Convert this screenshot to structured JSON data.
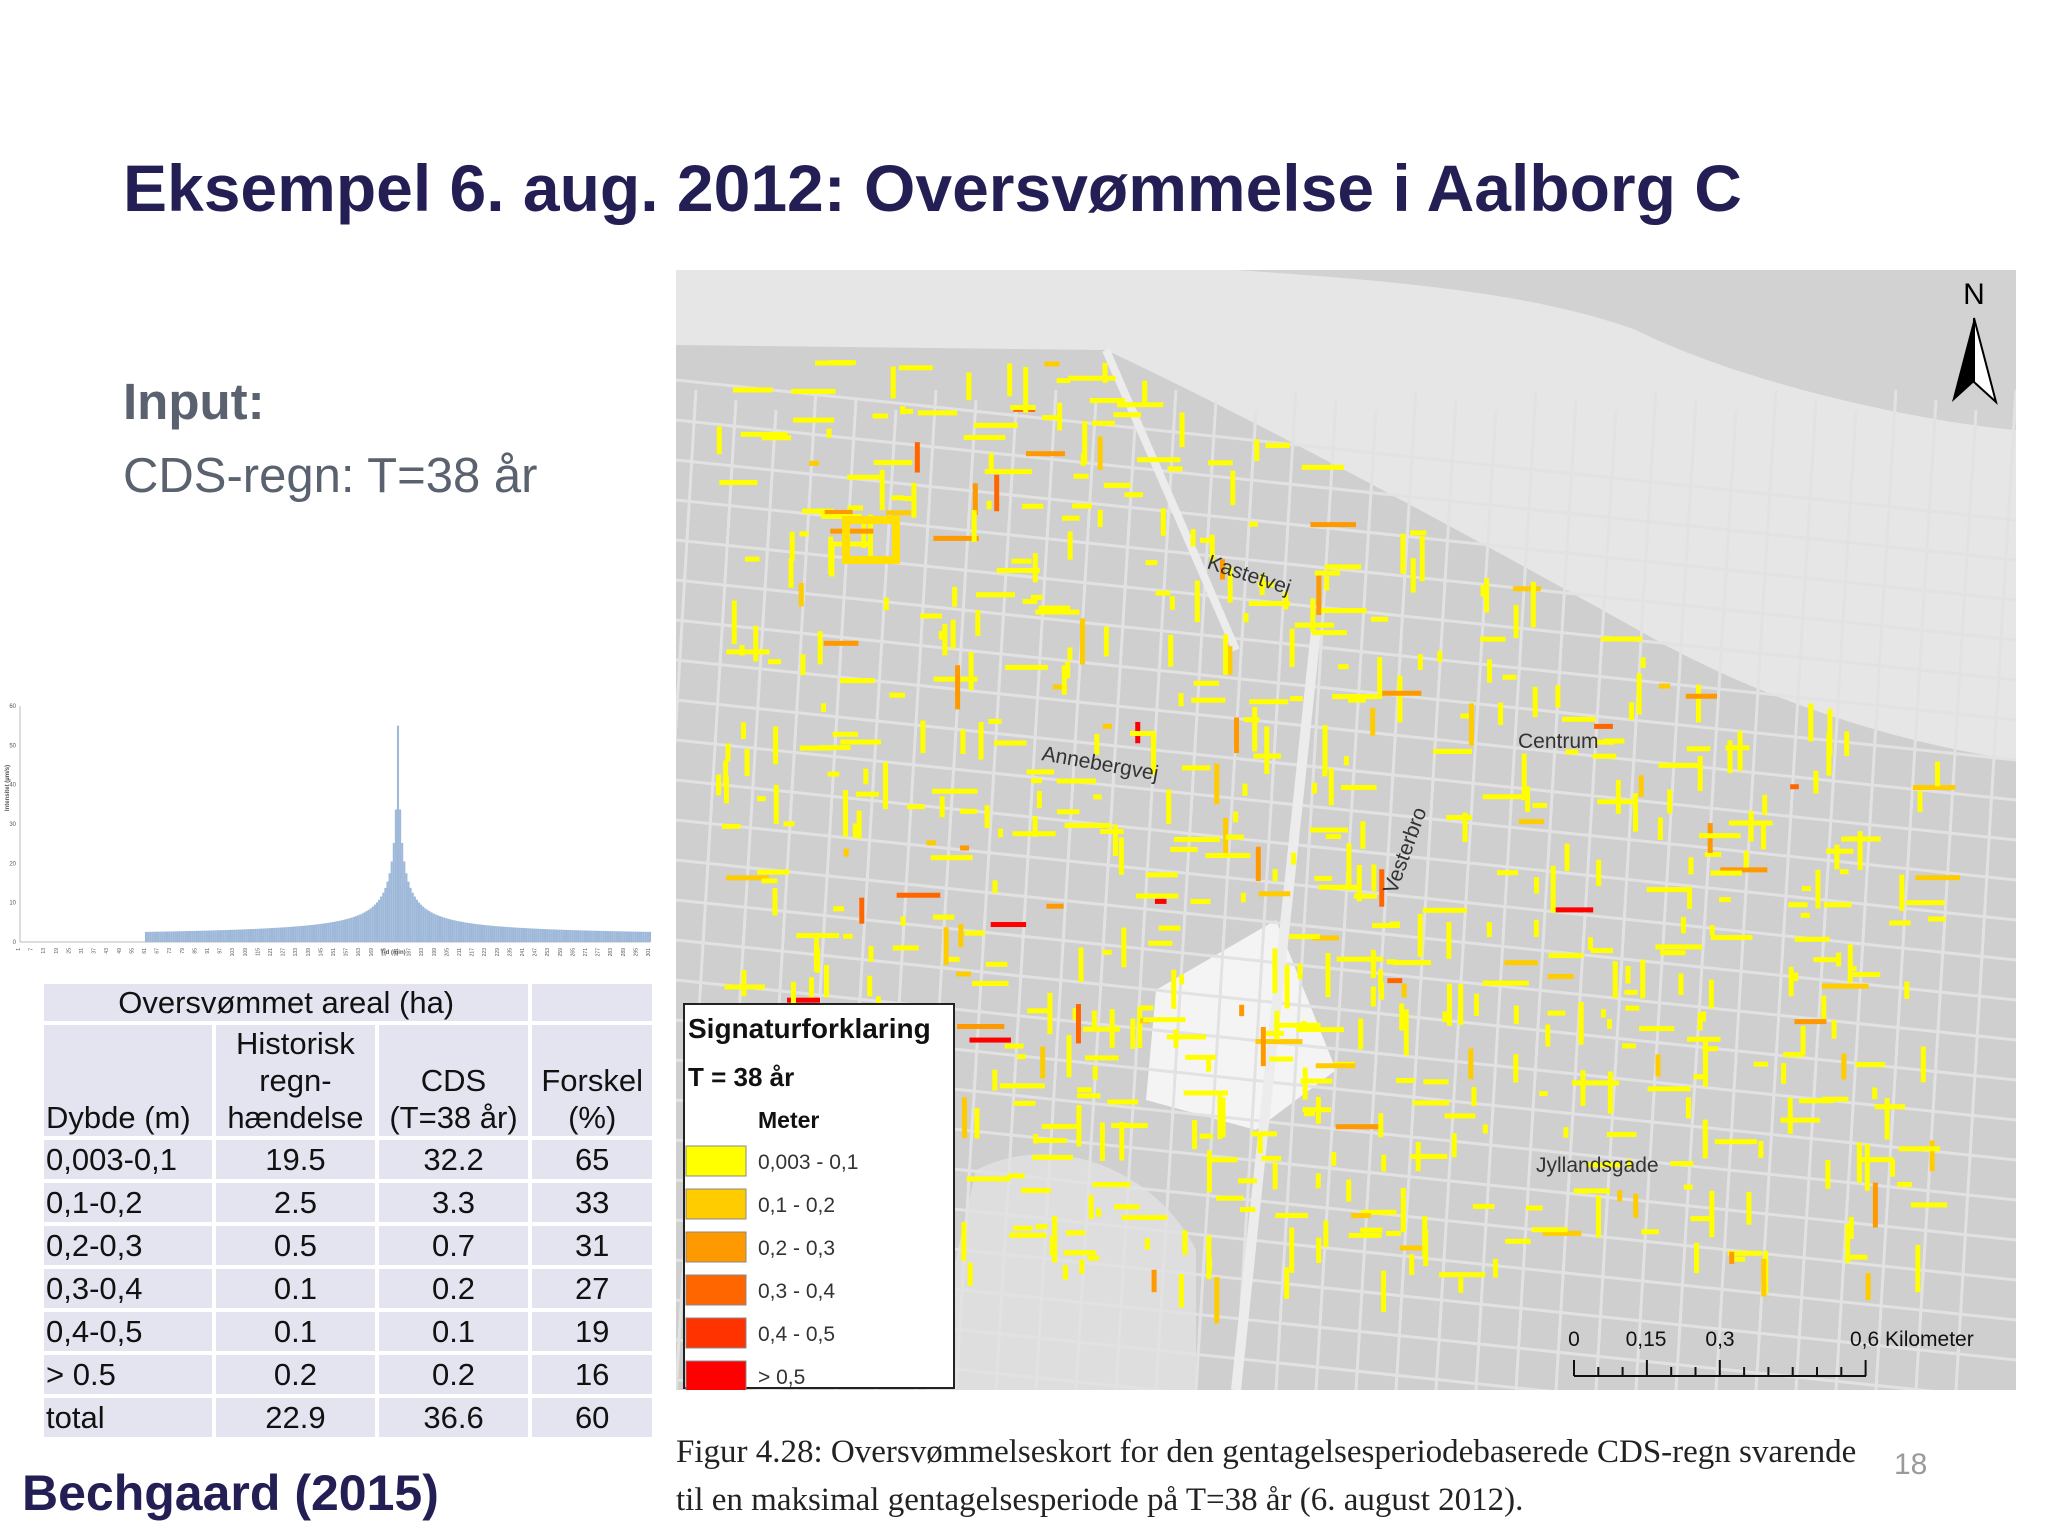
{
  "slide": {
    "title": "Eksempel 6. aug. 2012: Oversvømmelse i Aalborg C",
    "input_label": "Input:",
    "input_value": "CDS-regn: T=38 år",
    "credit": "Bechgaard (2015)",
    "page_number": "18"
  },
  "chart_data": {
    "type": "bar",
    "title": "",
    "xlabel": "Tid (min)",
    "ylabel": "Intensitet (µm/s)",
    "ylim": [
      0,
      60
    ],
    "yticks": [
      0,
      10,
      20,
      30,
      40,
      50,
      60
    ],
    "xticks": [
      "1",
      "7",
      "13",
      "19",
      "25",
      "31",
      "37",
      "43",
      "49",
      "55",
      "61",
      "67",
      "73",
      "79",
      "85",
      "91",
      "97",
      "103",
      "109",
      "115",
      "121",
      "127",
      "133",
      "139",
      "145",
      "151",
      "157",
      "163",
      "169",
      "175",
      "181",
      "187",
      "193",
      "199",
      "205",
      "211",
      "217",
      "223",
      "229",
      "235",
      "241",
      "247",
      "253",
      "259",
      "265",
      "271",
      "277",
      "283",
      "289",
      "295",
      "301"
    ],
    "x_range": [
      1,
      301
    ],
    "nonzero_from": 61,
    "peak_time": 181,
    "peak_value": 55,
    "base_value": 1.2,
    "color": "#9db8d9"
  },
  "table": {
    "header_group": "Oversvømmet areal (ha)",
    "col_depth": "Dybde (m)",
    "col_hist_lines": [
      "Historisk",
      "regn-",
      "hændelse"
    ],
    "col_cds_lines": [
      "CDS",
      "(T=38 år)"
    ],
    "col_diff_lines": [
      "Forskel",
      "(%)"
    ],
    "rows": [
      {
        "depth": "0,003-0,1",
        "hist": "19.5",
        "cds": "32.2",
        "diff": "65"
      },
      {
        "depth": "0,1-0,2",
        "hist": "2.5",
        "cds": "3.3",
        "diff": "33"
      },
      {
        "depth": "0,2-0,3",
        "hist": "0.5",
        "cds": "0.7",
        "diff": "31"
      },
      {
        "depth": "0,3-0,4",
        "hist": "0.1",
        "cds": "0.2",
        "diff": "27"
      },
      {
        "depth": "0,4-0,5",
        "hist": "0.1",
        "cds": "0.1",
        "diff": "19"
      },
      {
        "depth": "> 0.5",
        "hist": "0.2",
        "cds": "0.2",
        "diff": "16"
      },
      {
        "depth": "total",
        "hist": "22.9",
        "cds": "36.6",
        "diff": "60"
      }
    ]
  },
  "map": {
    "north_label": "N",
    "street_labels": [
      "Kastetvej",
      "Annebergvej",
      "Vesterbro",
      "Centrum",
      "Jyllandsgade"
    ],
    "legend": {
      "title": "Signaturforklaring",
      "subtitle": "T = 38 år",
      "unit": "Meter",
      "classes": [
        {
          "label": "0,003 - 0,1",
          "color": "#ffff00"
        },
        {
          "label": "0,1 - 0,2",
          "color": "#ffcc00"
        },
        {
          "label": "0,2 - 0,3",
          "color": "#ff9900"
        },
        {
          "label": "0,3 - 0,4",
          "color": "#ff6600"
        },
        {
          "label": "0,4 - 0,5",
          "color": "#ff3300"
        },
        {
          "label": "> 0,5",
          "color": "#ff0000"
        }
      ]
    },
    "scale_labels": [
      "0",
      "0,15",
      "0,3",
      "0,6 Kilometer"
    ],
    "water_color": "#e4e4e4",
    "base_color": "#cfcfcf"
  },
  "caption": {
    "line1": "Figur 4.28: Oversvømmelseskort for den gentagelsesperiodebaserede CDS-regn svarende",
    "line2": "til en maksimal gentagelsesperiode på T=38 år (6. august 2012)."
  }
}
